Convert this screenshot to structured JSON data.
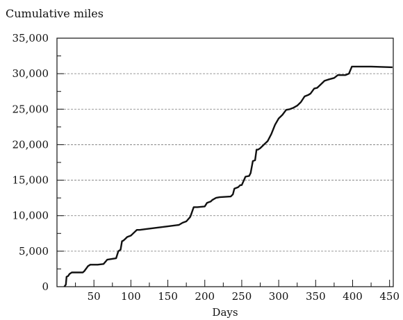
{
  "chart_data": {
    "type": "line",
    "title": "Cumulative miles",
    "xlabel": "Days",
    "ylabel": "",
    "xlim": [
      0,
      455
    ],
    "ylim": [
      0,
      35000
    ],
    "x_ticks": [
      50,
      100,
      150,
      200,
      250,
      300,
      350,
      400,
      450
    ],
    "x_tick_labels": [
      "50",
      "100",
      "150",
      "200",
      "250",
      "300",
      "350",
      "400",
      "450"
    ],
    "y_ticks": [
      0,
      5000,
      10000,
      15000,
      20000,
      25000,
      30000,
      35000
    ],
    "y_tick_labels": [
      "0",
      "5,000",
      "10,000",
      "15,000",
      "20,000",
      "25,000",
      "30,000",
      "35,000"
    ],
    "grid": "horizontal dashed",
    "legend": "none",
    "series": [
      {
        "x": [
          10,
          12,
          13,
          15,
          17,
          20,
          35,
          37,
          42,
          45,
          48,
          55,
          63,
          68,
          80,
          83,
          86,
          88,
          90,
          92,
          95,
          100,
          103,
          108,
          112,
          120,
          150,
          165,
          170,
          175,
          180,
          181,
          185,
          190,
          200,
          203,
          208,
          210,
          215,
          220,
          235,
          238,
          240,
          245,
          248,
          250,
          255,
          260,
          262,
          265,
          268,
          270,
          272,
          275,
          280,
          285,
          290,
          295,
          300,
          305,
          310,
          315,
          320,
          325,
          330,
          335,
          340,
          343,
          348,
          352,
          357,
          362,
          368,
          375,
          380,
          390,
          395,
          399,
          400,
          425,
          454
        ],
        "y": [
          0,
          300,
          1400,
          1500,
          1800,
          2000,
          2000,
          2200,
          2900,
          3100,
          3100,
          3100,
          3200,
          3800,
          4000,
          5000,
          5200,
          6400,
          6500,
          6700,
          7000,
          7200,
          7500,
          8000,
          8000,
          8100,
          8500,
          8700,
          9000,
          9200,
          9800,
          10000,
          11200,
          11200,
          11300,
          11800,
          12000,
          12200,
          12500,
          12600,
          12700,
          13000,
          13800,
          14000,
          14300,
          14300,
          15500,
          15600,
          16000,
          17700,
          17800,
          19300,
          19300,
          19500,
          20000,
          20500,
          21500,
          22800,
          23700,
          24200,
          24900,
          25000,
          25200,
          25500,
          26000,
          26800,
          27000,
          27200,
          27900,
          28000,
          28500,
          29000,
          29200,
          29400,
          29800,
          29800,
          30000,
          31000,
          31000,
          31000,
          30900
        ],
        "color": "#111111"
      }
    ]
  }
}
